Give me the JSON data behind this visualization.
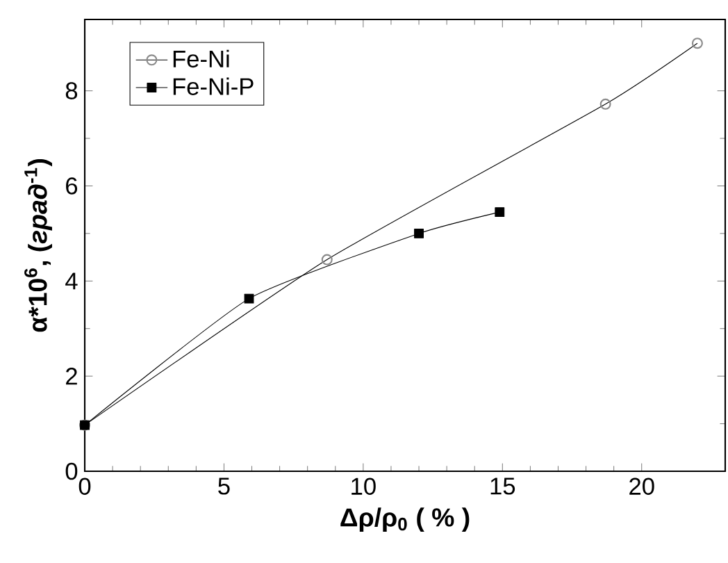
{
  "chart_data": {
    "type": "line",
    "xlabel": "Δρ/ρ$_{0}$  ( % )",
    "ylabel": "α*10$^{6}$, (*град*$^{-1}$)",
    "xlim": [
      0,
      23
    ],
    "ylim": [
      0,
      9.5
    ],
    "xticks": [
      0,
      5,
      10,
      15,
      20
    ],
    "yticks": [
      0,
      2,
      4,
      6,
      8
    ],
    "legend": "top left",
    "grid": false,
    "series": [
      {
        "name": "Fe-Ni",
        "color": "#8a8a8a",
        "marker": "circle",
        "x": [
          0,
          8.7,
          18.7,
          22
        ],
        "values": [
          0.97,
          4.45,
          7.72,
          9.0
        ]
      },
      {
        "name": "Fe-Ni-P",
        "color": "#000000",
        "marker": "square",
        "x": [
          0,
          5.9,
          12,
          14.9
        ],
        "values": [
          0.97,
          3.63,
          5.0,
          5.45
        ]
      }
    ]
  }
}
